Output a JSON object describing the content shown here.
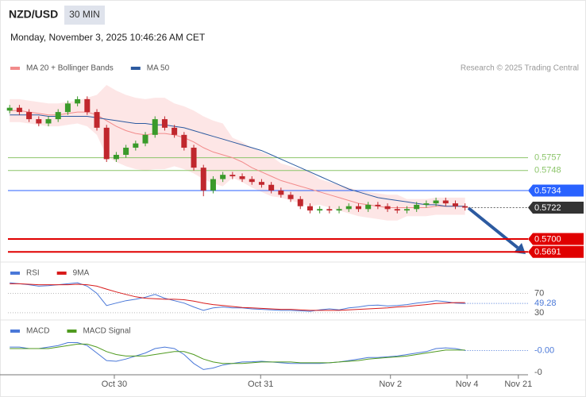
{
  "header": {
    "symbol": "NZD/USD",
    "interval": "30 MIN",
    "datetime": "Monday, November 3, 2025 10:46:26 AM CET"
  },
  "chart_data": [
    {
      "type": "candlestick",
      "credit": "Research © 2025 Trading Central",
      "up_color": "#3a9a2a",
      "down_color": "#c0272d",
      "open": [
        0.579,
        0.5792,
        0.5789,
        0.5784,
        0.5781,
        0.5784,
        0.5789,
        0.5795,
        0.5798,
        0.5789,
        0.5778,
        0.5756,
        0.5759,
        0.5764,
        0.5767,
        0.5773,
        0.5784,
        0.5778,
        0.5773,
        0.5764,
        0.575,
        0.5734,
        0.5742,
        0.5745,
        0.5744,
        0.5742,
        0.574,
        0.5738,
        0.5734,
        0.5731,
        0.5728,
        0.5723,
        0.572,
        0.5721,
        0.572,
        0.5721,
        0.5723,
        0.5721,
        0.5724,
        0.5723,
        0.5721,
        0.572,
        0.5721,
        0.5724,
        0.5725,
        0.5727,
        0.5725,
        0.5723
      ],
      "high": [
        0.5794,
        0.5794,
        0.5791,
        0.5786,
        0.5786,
        0.5791,
        0.5797,
        0.58,
        0.58,
        0.5791,
        0.578,
        0.5761,
        0.5766,
        0.5769,
        0.5775,
        0.5786,
        0.5786,
        0.578,
        0.5775,
        0.5766,
        0.5752,
        0.5744,
        0.5747,
        0.5747,
        0.5746,
        0.5744,
        0.5742,
        0.574,
        0.5736,
        0.5733,
        0.573,
        0.5725,
        0.5723,
        0.5723,
        0.5723,
        0.5725,
        0.5725,
        0.5726,
        0.5726,
        0.5725,
        0.5723,
        0.5723,
        0.5726,
        0.5727,
        0.5729,
        0.5729,
        0.5727,
        0.5725
      ],
      "low": [
        0.5788,
        0.5787,
        0.5782,
        0.5779,
        0.5779,
        0.5782,
        0.5787,
        0.5793,
        0.5787,
        0.5776,
        0.5754,
        0.5754,
        0.5757,
        0.5762,
        0.5765,
        0.5771,
        0.5776,
        0.5771,
        0.5762,
        0.5748,
        0.573,
        0.5732,
        0.574,
        0.5742,
        0.574,
        0.5738,
        0.5736,
        0.5732,
        0.5729,
        0.5726,
        0.5721,
        0.5718,
        0.5718,
        0.5718,
        0.5718,
        0.5719,
        0.5719,
        0.5719,
        0.5721,
        0.5719,
        0.5718,
        0.5718,
        0.5719,
        0.5722,
        0.5723,
        0.5723,
        0.5721,
        0.572
      ],
      "close": [
        0.5792,
        0.5789,
        0.5784,
        0.5781,
        0.5784,
        0.5789,
        0.5795,
        0.5798,
        0.5789,
        0.5778,
        0.5756,
        0.5759,
        0.5764,
        0.5767,
        0.5773,
        0.5784,
        0.5778,
        0.5773,
        0.5764,
        0.575,
        0.5734,
        0.5742,
        0.5745,
        0.5744,
        0.5742,
        0.574,
        0.5738,
        0.5734,
        0.5731,
        0.5728,
        0.5723,
        0.572,
        0.5721,
        0.572,
        0.5721,
        0.5723,
        0.5721,
        0.5724,
        0.5723,
        0.5721,
        0.572,
        0.5721,
        0.5724,
        0.5725,
        0.5727,
        0.5725,
        0.5723,
        0.5722
      ],
      "series": [
        {
          "name": "MA 20 + Bollinger Bands",
          "color": "#f28b8b",
          "band_color": "#fde2e2",
          "values": [
            0.579,
            0.579,
            0.5789,
            0.5788,
            0.5787,
            0.5787,
            0.5788,
            0.5789,
            0.5789,
            0.5787,
            0.5783,
            0.5779,
            0.5776,
            0.5774,
            0.5773,
            0.5774,
            0.5774,
            0.5773,
            0.5771,
            0.5768,
            0.5764,
            0.5761,
            0.5759,
            0.5757,
            0.5754,
            0.575,
            0.5747,
            0.5744,
            0.5741,
            0.5739,
            0.5737,
            0.5735,
            0.5733,
            0.5731,
            0.5729,
            0.5727,
            0.5725,
            0.5724,
            0.5723,
            0.5722,
            0.5722,
            0.5722,
            0.5722,
            0.5722,
            0.5723,
            0.5723,
            0.5723,
            0.5723
          ],
          "upper": [
            0.5798,
            0.5798,
            0.5797,
            0.5796,
            0.5795,
            0.5795,
            0.5796,
            0.5797,
            0.5799,
            0.5801,
            0.5808,
            0.5804,
            0.5801,
            0.5799,
            0.5798,
            0.5799,
            0.5799,
            0.5795,
            0.5793,
            0.579,
            0.5786,
            0.5783,
            0.5781,
            0.5771,
            0.5768,
            0.5764,
            0.5761,
            0.5758,
            0.5753,
            0.5751,
            0.5749,
            0.5747,
            0.5742,
            0.574,
            0.5738,
            0.5736,
            0.5734,
            0.5733,
            0.5732,
            0.5731,
            0.5731,
            0.5728,
            0.5728,
            0.5728,
            0.5729,
            0.5729,
            0.5729,
            0.5729
          ],
          "lower": [
            0.5782,
            0.5782,
            0.5781,
            0.578,
            0.5779,
            0.5779,
            0.578,
            0.5781,
            0.5779,
            0.5773,
            0.5758,
            0.5754,
            0.5751,
            0.5749,
            0.5748,
            0.5749,
            0.5749,
            0.5751,
            0.5749,
            0.5746,
            0.5742,
            0.5739,
            0.5737,
            0.5743,
            0.574,
            0.5736,
            0.5733,
            0.573,
            0.5729,
            0.5727,
            0.5725,
            0.5723,
            0.5724,
            0.5722,
            0.572,
            0.5718,
            0.5716,
            0.5715,
            0.5714,
            0.5713,
            0.5713,
            0.5716,
            0.5716,
            0.5716,
            0.5717,
            0.5717,
            0.5717,
            0.5717
          ]
        },
        {
          "name": "MA 50",
          "color": "#2c5aa0",
          "values": [
            0.5787,
            0.5787,
            0.5787,
            0.5787,
            0.5786,
            0.5786,
            0.5786,
            0.5786,
            0.5786,
            0.5785,
            0.5784,
            0.5783,
            0.5782,
            0.5781,
            0.5781,
            0.578,
            0.578,
            0.5779,
            0.5778,
            0.5776,
            0.5774,
            0.5772,
            0.577,
            0.5768,
            0.5766,
            0.5764,
            0.5762,
            0.5759,
            0.5756,
            0.5753,
            0.575,
            0.5747,
            0.5744,
            0.5741,
            0.5738,
            0.5735,
            0.5733,
            0.5731,
            0.5729,
            0.5728,
            0.5727,
            0.5726,
            0.5725,
            0.5724,
            0.5724,
            0.5723,
            0.5723,
            0.5723
          ]
        }
      ],
      "levels": [
        {
          "value": 0.5757,
          "color": "#8cc56a",
          "boxed": false,
          "dashed": false
        },
        {
          "value": 0.5748,
          "color": "#8cc56a",
          "boxed": false,
          "dashed": false
        },
        {
          "value": 0.5734,
          "color": "#2962ff",
          "boxed": true,
          "dashed": false
        },
        {
          "value": 0.5722,
          "color": "#333333",
          "boxed": true,
          "dashed": true
        },
        {
          "value": 0.57,
          "label": "0.5700",
          "color": "#e00000",
          "boxed": true,
          "dashed": false
        },
        {
          "value": 0.5691,
          "color": "#e00000",
          "boxed": true,
          "dashed": false
        }
      ],
      "ylim": [
        0.5685,
        0.5823
      ]
    },
    {
      "type": "line",
      "series": [
        {
          "name": "RSI",
          "color": "#4a78d8",
          "values": [
            92,
            90,
            88,
            85,
            86,
            88,
            90,
            92,
            85,
            70,
            45,
            50,
            55,
            58,
            62,
            68,
            60,
            55,
            50,
            42,
            35,
            40,
            42,
            40,
            40,
            38,
            37,
            36,
            35,
            35,
            34,
            33,
            36,
            38,
            36,
            40,
            42,
            45,
            46,
            44,
            45,
            47,
            50,
            52,
            55,
            53,
            50,
            49.28
          ]
        },
        {
          "name": "9MA",
          "color": "#d81b1b",
          "values": [
            90,
            90,
            89,
            88,
            88,
            88,
            88,
            89,
            88,
            85,
            79,
            73,
            68,
            63,
            60,
            59,
            58,
            58,
            57,
            54,
            50,
            47,
            45,
            43,
            41,
            40,
            39,
            38,
            37,
            37,
            36,
            35,
            35,
            35,
            35,
            36,
            37,
            38,
            39,
            40,
            42,
            43,
            45,
            47,
            49,
            50,
            51,
            51
          ]
        }
      ],
      "ylim": [
        20,
        130
      ],
      "yticks": [
        30,
        70
      ]
    },
    {
      "type": "line",
      "series": [
        {
          "name": "MACD",
          "color": "#4a78d8",
          "values": [
            0.0002,
            0.0002,
            0.0001,
            0.0001,
            0.0002,
            0.0003,
            0.0005,
            0.0005,
            0.0003,
            -0.0002,
            -0.0007,
            -0.00075,
            -0.0006,
            -0.0004,
            -0.0002,
            0.0001,
            0.0002,
            0.0001,
            -0.0003,
            -0.0009,
            -0.0013,
            -0.0012,
            -0.001,
            -0.0009,
            -0.0008,
            -0.00078,
            -0.00075,
            -0.0008,
            -0.00085,
            -0.0009,
            -0.0009,
            -0.0009,
            -0.0009,
            -0.00085,
            -0.0008,
            -0.0007,
            -0.0006,
            -0.0005,
            -0.0005,
            -0.00045,
            -0.0004,
            -0.0003,
            -0.0002,
            -0.0001,
            0.0001,
            0.00015,
            0.0001,
            -3e-05
          ]
        },
        {
          "name": "MACD Signal",
          "color": "#4f9a1f",
          "values": [
            0.0001,
            0.0001,
            0.0001,
            0.0001,
            0.0001,
            0.0002,
            0.0003,
            0.0004,
            0.0004,
            0.0002,
            -0.0001,
            -0.0003,
            -0.0004,
            -0.0004,
            -0.0004,
            -0.0003,
            -0.0002,
            -0.0001,
            -0.0001,
            -0.0003,
            -0.0006,
            -0.0008,
            -0.0009,
            -0.0009,
            -0.0009,
            -0.00085,
            -0.0008,
            -0.0008,
            -0.0008,
            -0.0008,
            -0.00085,
            -0.00085,
            -0.00085,
            -0.00085,
            -0.0008,
            -0.00075,
            -0.0007,
            -0.0006,
            -0.00055,
            -0.0005,
            -0.00045,
            -0.0004,
            -0.0003,
            -0.0002,
            -0.0001,
            0,
            0,
            0
          ]
        }
      ],
      "current": {
        "value": -3e-05,
        "label": "-0.00"
      },
      "ylim": [
        -0.0016,
        0.0018
      ],
      "yticks": [
        {
          "value": -0.0015,
          "label": "-0"
        }
      ],
      "xlim": [
        -1,
        53.5
      ],
      "xticks": [
        {
          "value": 10.8,
          "label": "Oct 30"
        },
        {
          "value": 25.9,
          "label": "Oct 31"
        },
        {
          "value": 39.3,
          "label": "Nov 2"
        },
        {
          "value": 47.2,
          "label": "Nov 4"
        },
        {
          "value": 52.5,
          "label": "Nov 21"
        }
      ]
    }
  ]
}
